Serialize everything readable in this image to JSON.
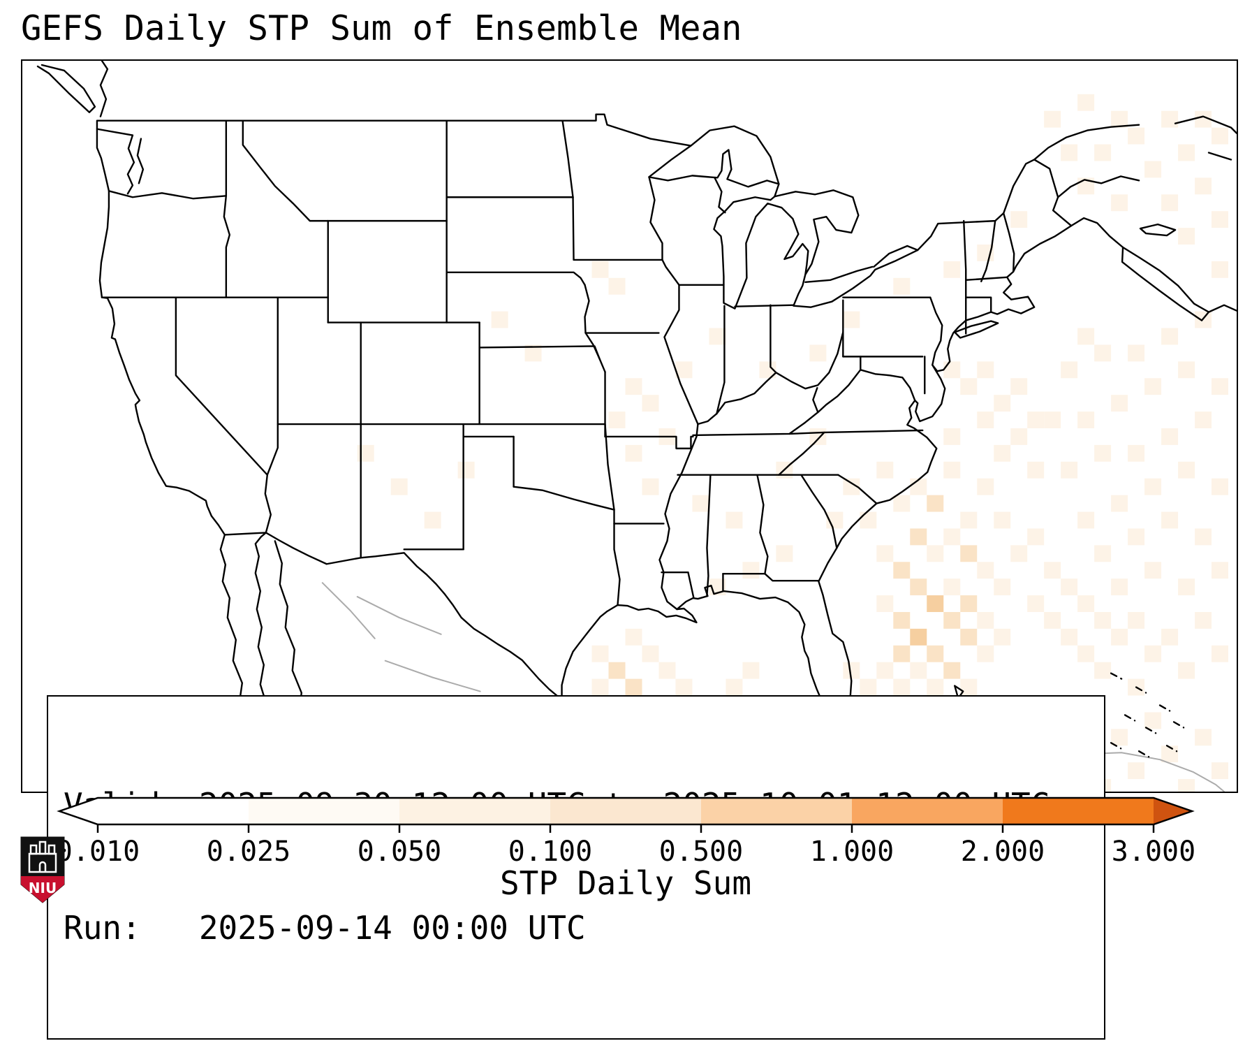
{
  "title": "GEFS Daily STP Sum of Ensemble Mean",
  "info_box": {
    "valid_line": "Valid: 2025-09-30 12:00 UTC to 2025-10-01 12:00 UTC",
    "run_line": "Run:   2025-09-14 00:00 UTC"
  },
  "colorbar": {
    "label": "STP Daily Sum",
    "ticks": [
      "0.010",
      "0.025",
      "0.050",
      "0.100",
      "0.500",
      "1.000",
      "2.000",
      "3.000"
    ],
    "segment_colors": [
      "#ffffff",
      "#fefaf4",
      "#fdf2e3",
      "#fbe7d0",
      "#fbd2a7",
      "#f9a660",
      "#f0791c"
    ],
    "under_arrow_color": "#ffffff",
    "over_arrow_color": "#cf5310",
    "outline_color": "#000000"
  },
  "map": {
    "land_line_color": "#000000",
    "foreign_line_color": "#ababab"
  },
  "overlay": {
    "cell_size": 24,
    "level_colors": [
      "#fdf3e7",
      "#fae3c6",
      "#f6cfa0"
    ],
    "cells": [
      [
        49,
        25,
        1
      ],
      [
        51,
        24,
        1
      ],
      [
        53,
        25,
        1
      ],
      [
        55,
        24,
        1
      ],
      [
        57,
        25,
        1
      ],
      [
        52,
        26,
        1
      ],
      [
        54,
        26,
        2
      ],
      [
        56,
        27,
        1
      ],
      [
        50,
        27,
        1
      ],
      [
        53,
        28,
        2
      ],
      [
        55,
        28,
        1
      ],
      [
        58,
        27,
        1
      ],
      [
        51,
        29,
        1
      ],
      [
        54,
        29,
        1
      ],
      [
        56,
        29,
        2
      ],
      [
        52,
        30,
        2
      ],
      [
        57,
        30,
        1
      ],
      [
        59,
        29,
        1
      ],
      [
        53,
        31,
        2
      ],
      [
        55,
        31,
        1
      ],
      [
        58,
        31,
        1
      ],
      [
        51,
        32,
        1
      ],
      [
        54,
        32,
        3
      ],
      [
        56,
        32,
        2
      ],
      [
        52,
        33,
        2
      ],
      [
        55,
        33,
        2
      ],
      [
        57,
        33,
        1
      ],
      [
        53,
        34,
        3
      ],
      [
        56,
        34,
        2
      ],
      [
        58,
        34,
        1
      ],
      [
        52,
        35,
        2
      ],
      [
        54,
        35,
        2
      ],
      [
        57,
        35,
        1
      ],
      [
        53,
        36,
        1
      ],
      [
        55,
        36,
        2
      ],
      [
        51,
        36,
        1
      ],
      [
        54,
        37,
        1
      ],
      [
        56,
        37,
        1
      ],
      [
        52,
        37,
        1
      ],
      [
        60,
        28,
        1
      ],
      [
        61,
        30,
        1
      ],
      [
        60,
        32,
        1
      ],
      [
        62,
        31,
        1
      ],
      [
        61,
        33,
        1
      ],
      [
        63,
        32,
        1
      ],
      [
        62,
        34,
        1
      ],
      [
        64,
        33,
        1
      ],
      [
        63,
        35,
        1
      ],
      [
        65,
        34,
        1
      ],
      [
        64,
        36,
        1
      ],
      [
        66,
        33,
        1
      ],
      [
        67,
        35,
        1
      ],
      [
        66,
        37,
        1
      ],
      [
        68,
        34,
        1
      ],
      [
        69,
        36,
        1
      ],
      [
        70,
        33,
        1
      ],
      [
        71,
        35,
        1
      ],
      [
        65,
        31,
        1
      ],
      [
        67,
        30,
        1
      ],
      [
        69,
        31,
        1
      ],
      [
        71,
        30,
        1
      ],
      [
        66,
        28,
        1
      ],
      [
        68,
        27,
        1
      ],
      [
        70,
        28,
        1
      ],
      [
        64,
        29,
        1
      ],
      [
        63,
        27,
        1
      ],
      [
        65,
        26,
        1
      ],
      [
        67,
        25,
        1
      ],
      [
        69,
        24,
        1
      ],
      [
        71,
        25,
        1
      ],
      [
        66,
        23,
        1
      ],
      [
        68,
        22,
        1
      ],
      [
        70,
        21,
        1
      ],
      [
        64,
        23,
        1
      ],
      [
        62,
        24,
        1
      ],
      [
        63,
        21,
        1
      ],
      [
        65,
        20,
        1
      ],
      [
        67,
        19,
        1
      ],
      [
        69,
        18,
        1
      ],
      [
        71,
        19,
        1
      ],
      [
        66,
        17,
        1
      ],
      [
        68,
        16,
        1
      ],
      [
        70,
        15,
        1
      ],
      [
        64,
        17,
        1
      ],
      [
        62,
        18,
        1
      ],
      [
        63,
        16,
        1
      ],
      [
        55,
        18,
        1
      ],
      [
        57,
        18,
        1
      ],
      [
        56,
        19,
        1
      ],
      [
        58,
        20,
        1
      ],
      [
        59,
        19,
        1
      ],
      [
        60,
        21,
        1
      ],
      [
        57,
        21,
        1
      ],
      [
        59,
        22,
        1
      ],
      [
        61,
        21,
        1
      ],
      [
        55,
        22,
        1
      ],
      [
        58,
        23,
        1
      ],
      [
        60,
        24,
        1
      ],
      [
        61,
        3,
        1
      ],
      [
        63,
        2,
        1
      ],
      [
        65,
        3,
        1
      ],
      [
        62,
        5,
        1
      ],
      [
        64,
        5,
        1
      ],
      [
        66,
        4,
        1
      ],
      [
        68,
        3,
        1
      ],
      [
        70,
        3,
        1
      ],
      [
        67,
        6,
        1
      ],
      [
        69,
        5,
        1
      ],
      [
        71,
        4,
        1
      ],
      [
        63,
        7,
        1
      ],
      [
        65,
        8,
        1
      ],
      [
        68,
        8,
        1
      ],
      [
        70,
        7,
        1
      ],
      [
        71,
        9,
        1
      ],
      [
        69,
        10,
        1
      ],
      [
        71,
        12,
        1
      ],
      [
        34,
        35,
        1
      ],
      [
        35,
        36,
        2
      ],
      [
        36,
        34,
        1
      ],
      [
        34,
        37,
        1
      ],
      [
        36,
        37,
        2
      ],
      [
        37,
        35,
        1
      ],
      [
        35,
        38,
        1
      ],
      [
        37,
        38,
        2
      ],
      [
        38,
        36,
        1
      ],
      [
        36,
        39,
        1
      ],
      [
        38,
        39,
        1
      ],
      [
        39,
        37,
        1
      ],
      [
        37,
        40,
        1
      ],
      [
        39,
        40,
        1
      ],
      [
        40,
        38,
        1
      ],
      [
        38,
        41,
        1
      ],
      [
        40,
        41,
        1
      ],
      [
        41,
        39,
        1
      ],
      [
        42,
        37,
        1
      ],
      [
        41,
        41,
        1
      ],
      [
        42,
        42,
        1
      ],
      [
        43,
        39,
        1
      ],
      [
        44,
        41,
        1
      ],
      [
        43,
        36,
        1
      ],
      [
        45,
        38,
        1
      ],
      [
        45,
        40,
        1
      ],
      [
        46,
        42,
        1
      ],
      [
        44,
        43,
        1
      ],
      [
        40,
        43,
        1
      ],
      [
        36,
        41,
        1
      ],
      [
        34,
        40,
        1
      ],
      [
        38,
        43,
        1
      ],
      [
        35,
        42,
        1
      ],
      [
        33,
        38,
        1
      ],
      [
        33,
        41,
        1
      ],
      [
        49,
        36,
        1
      ],
      [
        50,
        37,
        1
      ],
      [
        51,
        38,
        2
      ],
      [
        50,
        39,
        1
      ],
      [
        52,
        38,
        1
      ],
      [
        51,
        40,
        1
      ],
      [
        52,
        41,
        1
      ],
      [
        50,
        41,
        1
      ],
      [
        49,
        43,
        1
      ],
      [
        53,
        40,
        1
      ],
      [
        53,
        43,
        1
      ],
      [
        51,
        42,
        1
      ],
      [
        55,
        39,
        1
      ],
      [
        57,
        39,
        1
      ],
      [
        56,
        41,
        2
      ],
      [
        58,
        41,
        1
      ],
      [
        59,
        38,
        1
      ],
      [
        60,
        40,
        1
      ],
      [
        61,
        42,
        1
      ],
      [
        62,
        39,
        1
      ],
      [
        63,
        41,
        1
      ],
      [
        64,
        43,
        1
      ],
      [
        65,
        40,
        1
      ],
      [
        66,
        42,
        1
      ],
      [
        67,
        39,
        1
      ],
      [
        68,
        41,
        1
      ],
      [
        69,
        43,
        1
      ],
      [
        70,
        40,
        1
      ],
      [
        71,
        42,
        1
      ],
      [
        60,
        43,
        1
      ],
      [
        57,
        43,
        1
      ],
      [
        12,
        41,
        1
      ],
      [
        13,
        42,
        1
      ],
      [
        14,
        43,
        2
      ],
      [
        15,
        41,
        1
      ],
      [
        16,
        42,
        2
      ],
      [
        17,
        43,
        3
      ],
      [
        18,
        42,
        1
      ],
      [
        19,
        43,
        2
      ],
      [
        20,
        42,
        1
      ],
      [
        21,
        43,
        1
      ],
      [
        11,
        43,
        1
      ],
      [
        10,
        40,
        1
      ],
      [
        9,
        38,
        1
      ],
      [
        22,
        42,
        1
      ],
      [
        16,
        40,
        1
      ],
      [
        27,
        42,
        1
      ],
      [
        28,
        43,
        2
      ],
      [
        29,
        41,
        1
      ],
      [
        30,
        42,
        2
      ],
      [
        31,
        43,
        1
      ],
      [
        32,
        42,
        1
      ],
      [
        33,
        43,
        1
      ],
      [
        25,
        43,
        1
      ],
      [
        26,
        41,
        1
      ],
      [
        34,
        12,
        1
      ],
      [
        35,
        13,
        1
      ],
      [
        36,
        19,
        1
      ],
      [
        37,
        20,
        1
      ],
      [
        35,
        21,
        1
      ],
      [
        38,
        22,
        1
      ],
      [
        36,
        23,
        1
      ],
      [
        37,
        25,
        1
      ],
      [
        39,
        18,
        1
      ],
      [
        41,
        16,
        1
      ],
      [
        44,
        18,
        1
      ],
      [
        47,
        17,
        1
      ],
      [
        49,
        15,
        1
      ],
      [
        52,
        13,
        1
      ],
      [
        55,
        12,
        1
      ],
      [
        20,
        23,
        1
      ],
      [
        22,
        25,
        1
      ],
      [
        24,
        27,
        1
      ],
      [
        26,
        24,
        1
      ],
      [
        40,
        26,
        1
      ],
      [
        42,
        27,
        1
      ],
      [
        45,
        24,
        1
      ],
      [
        47,
        22,
        1
      ],
      [
        43,
        30,
        1
      ],
      [
        41,
        31,
        1
      ],
      [
        45,
        29,
        1
      ],
      [
        48,
        27,
        1
      ],
      [
        57,
        11,
        1
      ],
      [
        59,
        9,
        1
      ],
      [
        30,
        17,
        1
      ],
      [
        28,
        15,
        1
      ]
    ]
  },
  "logo": {
    "text": "NIU",
    "red": "#c8102e",
    "black": "#111111"
  }
}
